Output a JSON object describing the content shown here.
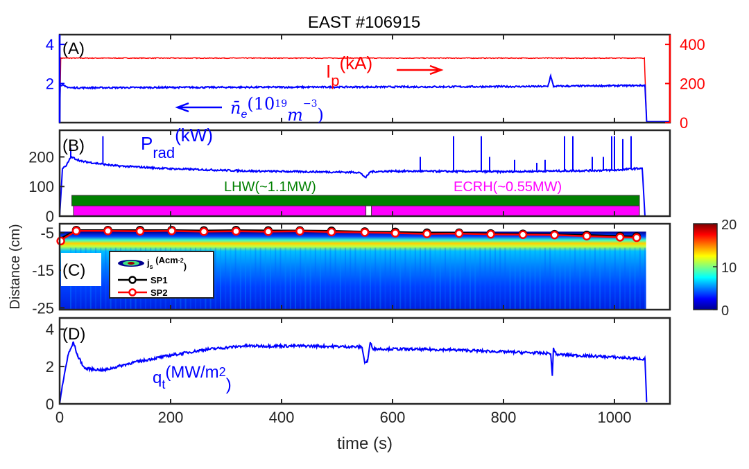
{
  "chart_data": [
    {
      "panel": "A",
      "type": "line",
      "title": "EAST #106915",
      "label": "(A)",
      "xlim": [
        0,
        1100
      ],
      "ylim_left": [
        0,
        4.5
      ],
      "ylim_right": [
        0,
        450
      ],
      "yticks_left": [
        "2",
        "4"
      ],
      "yticks_right": [
        "0",
        "200",
        "400"
      ],
      "series": [
        {
          "name": "Ip(kA)",
          "axis": "right",
          "color": "#ff0000",
          "points": [
            [
              0,
              0
            ],
            [
              2,
              330
            ],
            [
              1054,
              330
            ],
            [
              1058,
              0
            ],
            [
              1100,
              0
            ]
          ]
        },
        {
          "name": "ne(10^19 m^-3)",
          "axis": "left",
          "color": "#0000ff",
          "points": [
            [
              0,
              0
            ],
            [
              1,
              1.95
            ],
            [
              10,
              1.85
            ],
            [
              20,
              1.78
            ],
            [
              200,
              1.8
            ],
            [
              500,
              1.82
            ],
            [
              880,
              1.85
            ],
            [
              885,
              2.4
            ],
            [
              890,
              1.86
            ],
            [
              1055,
              1.9
            ],
            [
              1058,
              0.05
            ],
            [
              1100,
              0.05
            ]
          ]
        }
      ],
      "annotations": {
        "ip_label": "I",
        "ip_sub": "p",
        "ip_unit": "(kA)",
        "ne_label": "n̄",
        "ne_sub": "e",
        "ne_unit": "(10",
        "ne_exp": "19",
        "ne_m": "m",
        "ne_mexp": "−3",
        "ne_close": ")"
      }
    },
    {
      "panel": "B",
      "type": "line",
      "label": "(B)",
      "xlim": [
        0,
        1100
      ],
      "ylim": [
        0,
        290
      ],
      "yticks": [
        "0",
        "100",
        "200"
      ],
      "series": [
        {
          "name": "Prad(kW)",
          "color": "#0000ff",
          "points": [
            [
              0,
              0
            ],
            [
              5,
              160
            ],
            [
              12,
              170
            ],
            [
              20,
              200
            ],
            [
              40,
              185
            ],
            [
              100,
              170
            ],
            [
              200,
              160
            ],
            [
              350,
              152
            ],
            [
              540,
              148
            ],
            [
              552,
              130
            ],
            [
              560,
              150
            ],
            [
              600,
              152
            ],
            [
              800,
              150
            ],
            [
              1000,
              155
            ],
            [
              1050,
              162
            ],
            [
              1055,
              0
            ]
          ]
        }
      ],
      "spikes": [
        [
          78,
          270
        ],
        [
          20,
          230
        ],
        [
          710,
          270
        ],
        [
          760,
          270
        ],
        [
          775,
          200
        ],
        [
          875,
          190
        ],
        [
          910,
          270
        ],
        [
          925,
          270
        ],
        [
          995,
          270
        ],
        [
          1000,
          270
        ],
        [
          1030,
          270
        ],
        [
          1015,
          260
        ],
        [
          650,
          200
        ],
        [
          820,
          190
        ],
        [
          860,
          180
        ],
        [
          960,
          200
        ],
        [
          980,
          200
        ]
      ],
      "prad_label": "P",
      "prad_sub": "rad",
      "prad_unit": "(kW)",
      "bars": [
        {
          "name": "LHW(~1.1MW)",
          "color": "#008000",
          "start": 22,
          "end": 1045,
          "low": 35,
          "high": 70
        },
        {
          "name": "ECRH(~0.55MW)",
          "color": "#ff00ff",
          "start": 25,
          "end": 552,
          "low": 0,
          "high": 35
        },
        {
          "name": "ECRH(~0.55MW)",
          "color": "#ff00ff",
          "start": 562,
          "end": 1045,
          "low": 0,
          "high": 35
        }
      ],
      "bar_labels": {
        "lhw": "LHW(~1.1MW)",
        "ecrh": "ECRH(~0.55MW)"
      }
    },
    {
      "panel": "C",
      "type": "heatmap",
      "label": "(C)",
      "xlim": [
        0,
        1100
      ],
      "ylim": [
        -25.5,
        -2.6
      ],
      "ylabel": "Distance (cm)",
      "yticks": [
        "-5",
        "-15",
        "-25"
      ],
      "colorbar": {
        "min": 0,
        "max": 20,
        "ticks": [
          "0",
          "10",
          "20"
        ]
      },
      "legend": {
        "js": "j",
        "js_sub": "s",
        "js_unit": " (Acm",
        "js_exp": "-2",
        "js_close": ")",
        "sp1": "SP1",
        "sp2": "SP2"
      },
      "sp_t": [
        30,
        87,
        145,
        202,
        260,
        318,
        376,
        433,
        490,
        550,
        605,
        662,
        720,
        777,
        835,
        892,
        950,
        1010,
        1040
      ],
      "sp1": [
        -4.3,
        -4.3,
        -4.3,
        -4.3,
        -4.4,
        -4.3,
        -4.4,
        -4.4,
        -4.5,
        -4.7,
        -4.8,
        -5.0,
        -5.0,
        -5.2,
        -5.3,
        -5.4,
        -5.6,
        -5.9,
        -6.0
      ],
      "sp2": [
        -4.5,
        -4.5,
        -4.6,
        -4.5,
        -4.7,
        -4.6,
        -4.7,
        -4.6,
        -4.8,
        -4.9,
        -5.1,
        -5.3,
        -5.2,
        -5.4,
        -5.5,
        -5.6,
        -5.9,
        -6.2,
        -6.3
      ]
    },
    {
      "panel": "D",
      "type": "line",
      "label": "(D)",
      "xlim": [
        0,
        1100
      ],
      "ylim": [
        0,
        4.6
      ],
      "yticks": [
        "0",
        "2",
        "4"
      ],
      "xticks": [
        "0",
        "200",
        "400",
        "600",
        "800",
        "1000"
      ],
      "xlabel": "time (s)",
      "qt_label": "q",
      "qt_sub": "t",
      "qt_unit": "(MW/m",
      "qt_exp": "2",
      "qt_close": ")",
      "series": [
        {
          "name": "qt(MW/m2)",
          "color": "#0000ff",
          "points": [
            [
              0,
              0
            ],
            [
              5,
              1.0
            ],
            [
              15,
              2.6
            ],
            [
              25,
              3.3
            ],
            [
              32,
              2.6
            ],
            [
              45,
              1.9
            ],
            [
              80,
              1.8
            ],
            [
              130,
              2.2
            ],
            [
              200,
              2.6
            ],
            [
              260,
              2.9
            ],
            [
              330,
              3.1
            ],
            [
              450,
              3.1
            ],
            [
              545,
              3.05
            ],
            [
              550,
              2.2
            ],
            [
              555,
              2.3
            ],
            [
              560,
              3.3
            ],
            [
              565,
              2.95
            ],
            [
              700,
              2.9
            ],
            [
              885,
              2.7
            ],
            [
              888,
              1.5
            ],
            [
              890,
              3.0
            ],
            [
              895,
              2.65
            ],
            [
              1000,
              2.5
            ],
            [
              1055,
              2.4
            ],
            [
              1058,
              0.1
            ]
          ]
        }
      ]
    }
  ]
}
